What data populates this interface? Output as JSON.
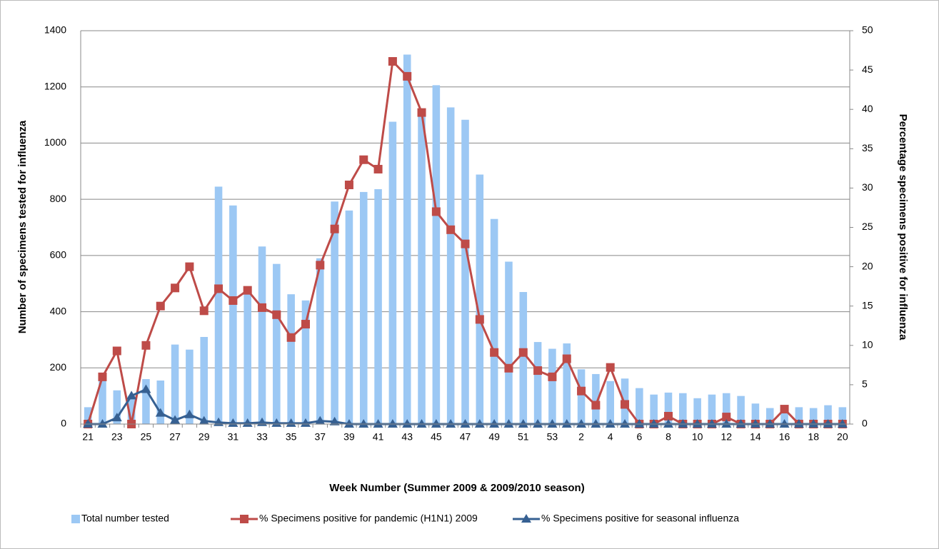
{
  "chart_data": {
    "type": "combo",
    "x_label": "Week Number (Summer 2009 & 2009/2010 season)",
    "y_label": "Number of specimens tested for influenza",
    "y2_label": "Percentage specimens positive for influenza",
    "categories": [
      "21",
      null,
      "23",
      null,
      "25",
      null,
      "27",
      null,
      "29",
      null,
      "31",
      null,
      "33",
      null,
      "35",
      null,
      "37",
      null,
      "39",
      null,
      "41",
      null,
      "43",
      null,
      "45",
      null,
      "47",
      null,
      "49",
      null,
      "51",
      null,
      "53",
      null,
      "2",
      null,
      "4",
      null,
      "6",
      null,
      "8",
      null,
      "10",
      null,
      "12",
      null,
      "14",
      null,
      "16",
      null,
      "18",
      null,
      "20"
    ],
    "series": [
      {
        "name": "Total number tested",
        "type": "bar",
        "color": "#9cc8f4",
        "values": [
          60,
          170,
          120,
          100,
          160,
          155,
          283,
          265,
          310,
          845,
          778,
          480,
          632,
          570,
          462,
          440,
          590,
          792,
          760,
          826,
          836,
          1076,
          1315,
          1110,
          1206,
          1127,
          1083,
          888,
          730,
          578,
          470,
          292,
          268,
          287,
          195,
          178,
          153,
          162,
          128,
          105,
          112,
          110,
          92,
          105,
          110,
          100,
          73,
          57,
          45,
          60,
          57,
          67,
          60
        ]
      },
      {
        "name": "% Specimens positive for pandemic (H1N1) 2009",
        "type": "line",
        "marker": "square",
        "axis": "y2",
        "color": "#be4b48",
        "values": [
          0,
          6.0,
          9.3,
          0,
          10,
          15,
          17.3,
          20,
          14.4,
          17.2,
          15.7,
          17,
          14.8,
          13.9,
          11,
          12.7,
          20.2,
          24.8,
          30.4,
          33.6,
          32.4,
          46.1,
          44.2,
          39.6,
          27,
          24.7,
          22.9,
          13.3,
          9.1,
          7.1,
          9.1,
          6.8,
          6.0,
          8.3,
          4.2,
          2.4,
          7.2,
          2.5,
          0,
          0,
          1,
          0,
          0,
          0,
          0.9,
          0,
          0,
          0,
          1.9,
          0,
          0,
          0,
          0
        ]
      },
      {
        "name": "% Specimens positive for seasonal influenza",
        "type": "line",
        "marker": "triangle",
        "axis": "y2",
        "color": "#366092",
        "values": [
          0,
          0,
          0.8,
          3.6,
          4.4,
          1.4,
          0.5,
          1.2,
          0.4,
          0.2,
          0.1,
          0.1,
          0.2,
          0.1,
          0.1,
          0.1,
          0.4,
          0.3,
          0,
          0,
          0,
          0,
          0,
          0,
          0,
          0,
          0,
          0,
          0,
          0,
          0,
          0,
          0,
          0,
          0,
          0,
          0,
          0,
          0,
          0,
          0,
          0,
          0,
          0,
          0,
          0,
          0,
          0,
          0,
          0,
          0,
          0,
          0
        ]
      }
    ],
    "ylim": [
      0,
      1400
    ],
    "yticks": [
      0,
      200,
      400,
      600,
      800,
      1000,
      1200,
      1400
    ],
    "y2lim": [
      0,
      50
    ],
    "y2ticks": [
      0,
      5,
      10,
      15,
      20,
      25,
      30,
      35,
      40,
      45,
      50
    ],
    "grid": true,
    "legend": "bottom"
  }
}
